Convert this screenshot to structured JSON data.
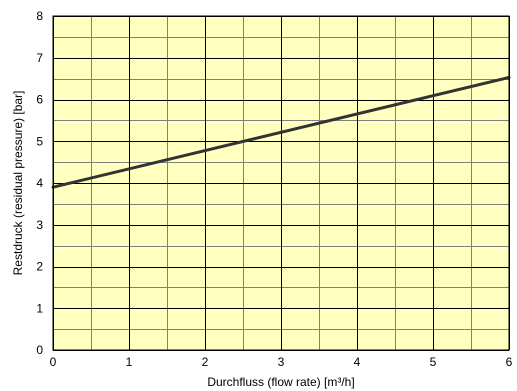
{
  "chart_data": {
    "type": "line",
    "title": "",
    "xlabel": "Durchfluss (flow rate) [m³/h]",
    "ylabel": "Restdruck (residual pressure) [bar]",
    "xlim": [
      0,
      6
    ],
    "ylim": [
      0,
      8
    ],
    "x_major_ticks": [
      0,
      1,
      2,
      3,
      4,
      5,
      6
    ],
    "x_minor_step": 0.5,
    "y_major_ticks": [
      0,
      1,
      2,
      3,
      4,
      5,
      6,
      7,
      8
    ],
    "y_minor_step": 0.5,
    "grid": true,
    "legend": "none",
    "background_color": "#ffffc0",
    "grid_major_color": "#000000",
    "grid_minor_color": "#808080",
    "series": [
      {
        "color": "#333333",
        "x": [
          0,
          6
        ],
        "y": [
          3.9,
          6.53
        ]
      }
    ]
  }
}
